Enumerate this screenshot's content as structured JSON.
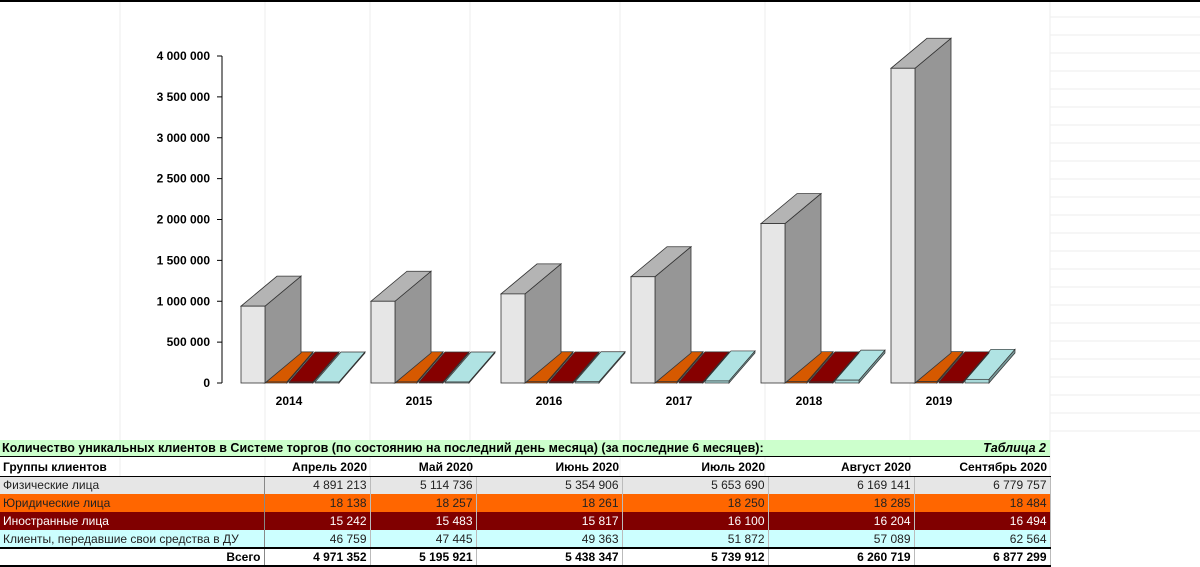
{
  "chart_data": {
    "type": "bar",
    "categories": [
      "2014",
      "2015",
      "2016",
      "2017",
      "2018",
      "2019"
    ],
    "series": [
      {
        "values": [
          940000,
          1000000,
          1090000,
          1300000,
          1950000,
          3850000
        ],
        "color": "#e6e6e6"
      },
      {
        "values": [
          14000,
          14500,
          15000,
          15500,
          16000,
          17000
        ],
        "color": "#cc5500"
      },
      {
        "values": [
          12000,
          12500,
          13000,
          13500,
          14000,
          14500
        ],
        "color": "#800000"
      },
      {
        "values": [
          8000,
          10000,
          15000,
          25000,
          35000,
          45000
        ],
        "color": "#a8d8d8"
      }
    ],
    "yticks": [
      "0",
      "500 000",
      "1 000 000",
      "1 500 000",
      "2 000 000",
      "2 500 000",
      "3 000 000",
      "3 500 000",
      "4 000 000"
    ],
    "ylim": [
      0,
      4000000
    ],
    "grid": false,
    "legend": "none"
  },
  "table": {
    "title": "Количество уникальных клиентов в Системе торгов (по состоянию на последний день месяца) (за последние 6 месяцев):",
    "label": "Таблица 2",
    "header": [
      "Группы клиентов",
      "Апрель 2020",
      "Май 2020",
      "Июнь 2020",
      "Июль 2020",
      "Август 2020",
      "Сентябрь 2020"
    ],
    "rows": [
      [
        "Физические лица",
        "4 891 213",
        "5 114 736",
        "5 354 906",
        "5 653 690",
        "6 169 141",
        "6 779 757"
      ],
      [
        "Юридические лица",
        "18 138",
        "18 257",
        "18 261",
        "18 250",
        "18 285",
        "18 484"
      ],
      [
        "Иностранные лица",
        "15 242",
        "15 483",
        "15 817",
        "16 100",
        "16 204",
        "16 494"
      ],
      [
        "Клиенты, передавшие свои средства в ДУ",
        "46 759",
        "47 445",
        "49 363",
        "51 872",
        "57 089",
        "62 564"
      ]
    ],
    "total": [
      "Всего",
      "4 971 352",
      "5 195 921",
      "5 438 347",
      "5 739 912",
      "6 260 719",
      "6 877 299"
    ]
  }
}
